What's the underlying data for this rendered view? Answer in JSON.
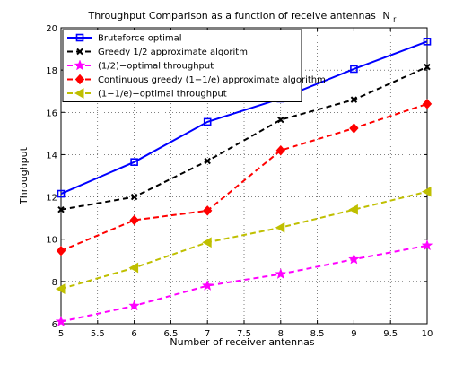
{
  "chart_data": {
    "type": "line",
    "title": "Throughput Comparison as a function of receive antennas",
    "title_symbol": "N",
    "title_subscript": "r",
    "xlabel": "Number of receiver antennas",
    "ylabel": "Throughput",
    "xlim": [
      5,
      10
    ],
    "ylim": [
      6,
      20
    ],
    "xticks": [
      5,
      5.5,
      6,
      6.5,
      7,
      7.5,
      8,
      8.5,
      9,
      9.5,
      10
    ],
    "xtick_labels": [
      "5",
      "5.5",
      "6",
      "6.5",
      "7",
      "7.5",
      "8",
      "8.5",
      "9",
      "9.5",
      "10"
    ],
    "yticks": [
      6,
      8,
      10,
      12,
      14,
      16,
      18,
      20
    ],
    "ytick_labels": [
      "6",
      "8",
      "10",
      "12",
      "14",
      "16",
      "18",
      "20"
    ],
    "grid": true,
    "legend_position": "top-left",
    "x": [
      5,
      6,
      7,
      8,
      9,
      10
    ],
    "series": [
      {
        "name": "Bruteforce optimal",
        "values": [
          12.15,
          13.65,
          15.55,
          16.65,
          18.05,
          19.35
        ],
        "color": "#0000ff",
        "dash": "solid",
        "marker": "square"
      },
      {
        "name": "Greedy 1/2 approximate algoritm",
        "values": [
          11.4,
          12.0,
          13.7,
          15.65,
          16.6,
          18.15
        ],
        "color": "#000000",
        "dash": "dashed",
        "marker": "x"
      },
      {
        "name": "(1/2)−optimal throughput",
        "values": [
          6.1,
          6.85,
          7.8,
          8.35,
          9.05,
          9.7
        ],
        "color": "#ff00ff",
        "dash": "dashed",
        "marker": "star"
      },
      {
        "name": "Continuous greedy (1−1/e) approximate algorithm",
        "values": [
          9.45,
          10.9,
          11.35,
          14.2,
          15.25,
          16.4
        ],
        "color": "#ff0000",
        "dash": "dashed",
        "marker": "diamond"
      },
      {
        "name": "(1−1/e)−optimal throughput",
        "values": [
          7.65,
          8.65,
          9.85,
          10.55,
          11.4,
          12.25
        ],
        "color": "#bfbf00",
        "dash": "dashed",
        "marker": "triangle-left"
      }
    ]
  }
}
